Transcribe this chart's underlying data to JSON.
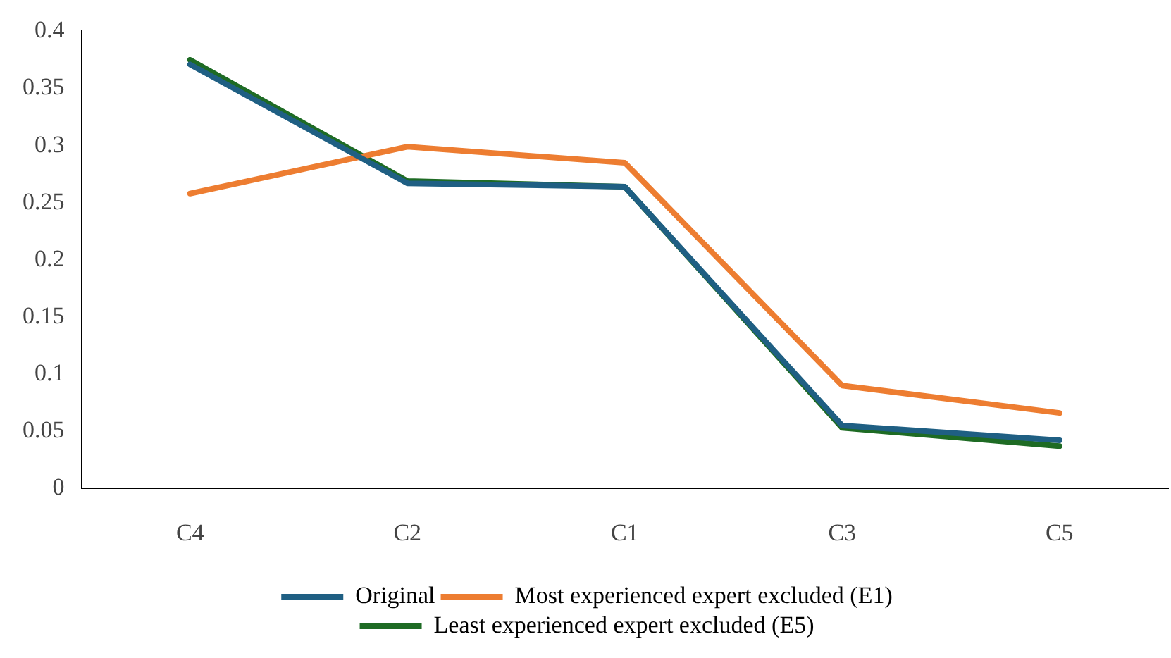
{
  "chart_data": {
    "type": "line",
    "categories": [
      "C4",
      "C2",
      "C1",
      "C3",
      "C5"
    ],
    "series": [
      {
        "name": "Original",
        "color": "#1f5f83",
        "values": [
          0.371,
          0.267,
          0.264,
          0.055,
          0.042
        ]
      },
      {
        "name": "Most experienced expert excluded (E1)",
        "color": "#ed7d31",
        "values": [
          0.258,
          0.299,
          0.285,
          0.09,
          0.066
        ]
      },
      {
        "name": "Least experienced expert excluded (E5)",
        "color": "#1e6b24",
        "values": [
          0.375,
          0.269,
          0.264,
          0.053,
          0.037
        ]
      }
    ],
    "ylim": [
      0,
      0.4
    ],
    "yticks": [
      0,
      0.05,
      0.1,
      0.15,
      0.2,
      0.25,
      0.3,
      0.35,
      0.4
    ],
    "grid": false,
    "legend": "bottom",
    "marker": "none",
    "line_style": "solid"
  }
}
